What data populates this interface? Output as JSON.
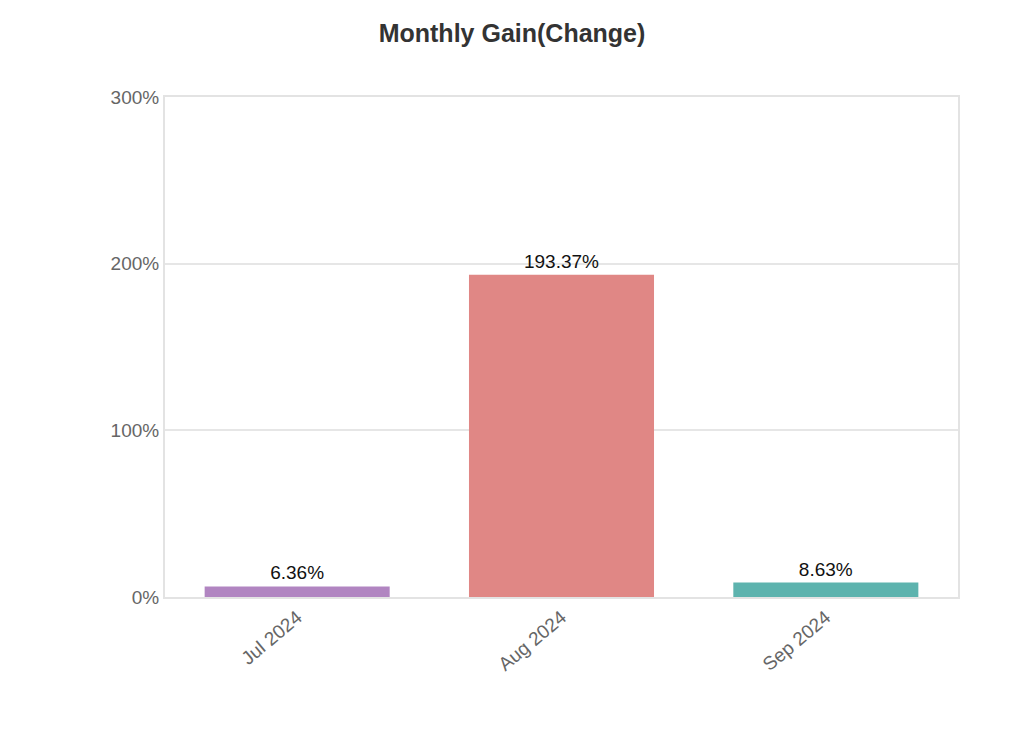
{
  "chart_data": {
    "type": "bar",
    "title": "Monthly Gain(Change)",
    "categories": [
      "Jul 2024",
      "Aug 2024",
      "Sep 2024"
    ],
    "values": [
      6.36,
      193.37,
      8.63
    ],
    "value_labels": [
      "6.36%",
      "193.37%",
      "8.63%"
    ],
    "colors": [
      "#b185c1",
      "#e08785",
      "#5db3ae"
    ],
    "data_labels": true,
    "ylim": [
      0,
      300
    ],
    "yticks": [
      {
        "value": 0,
        "label": "0%"
      },
      {
        "value": 100,
        "label": "100%"
      },
      {
        "value": 200,
        "label": "200%"
      },
      {
        "value": 300,
        "label": "300%"
      }
    ],
    "grid": true
  }
}
